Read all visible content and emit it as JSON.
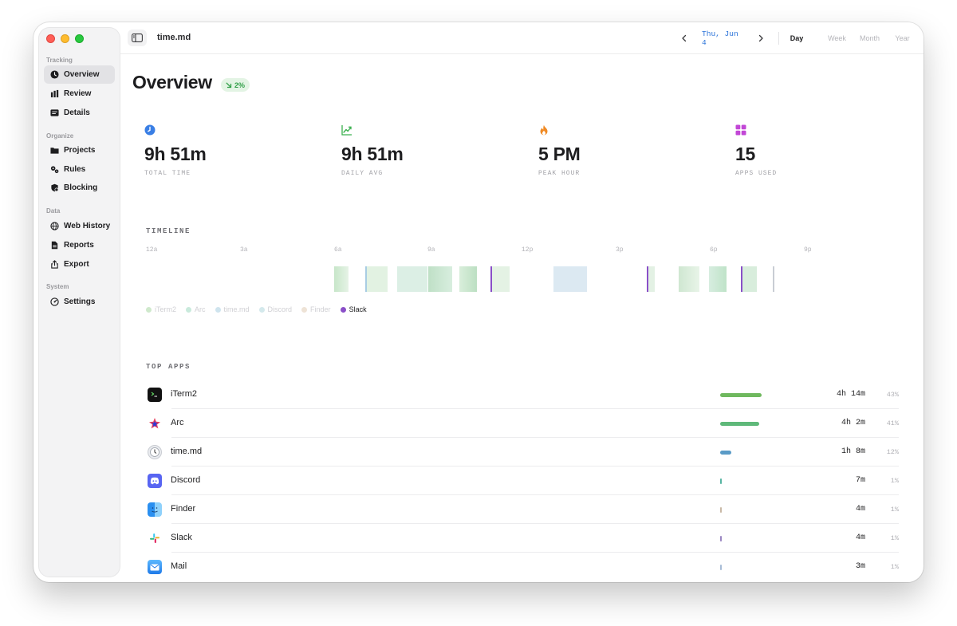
{
  "sidebar": {
    "sections": [
      {
        "label": "Tracking",
        "items": [
          {
            "label": "Overview",
            "icon": "clock-icon",
            "active": true
          },
          {
            "label": "Review",
            "icon": "bar-chart-icon"
          },
          {
            "label": "Details",
            "icon": "list-detail-icon"
          }
        ]
      },
      {
        "label": "Organize",
        "items": [
          {
            "label": "Projects",
            "icon": "folder-icon"
          },
          {
            "label": "Rules",
            "icon": "gears-icon"
          },
          {
            "label": "Blocking",
            "icon": "shield-icon"
          }
        ]
      },
      {
        "label": "Data",
        "items": [
          {
            "label": "Web History",
            "icon": "globe-icon"
          },
          {
            "label": "Reports",
            "icon": "document-icon"
          },
          {
            "label": "Export",
            "icon": "share-icon"
          }
        ]
      },
      {
        "label": "System",
        "items": [
          {
            "label": "Settings",
            "icon": "gauge-icon"
          }
        ]
      }
    ]
  },
  "header": {
    "title": "time.md",
    "date": "Thu, Jun 4",
    "ranges": [
      "Day",
      "Week",
      "Month",
      "Year"
    ],
    "active_range": "Day"
  },
  "overview": {
    "title": "Overview",
    "trend": "2%",
    "trend_direction": "down"
  },
  "stats": [
    {
      "value": "9h 51m",
      "label": "TOTAL TIME",
      "icon": "clock-icon",
      "color": "#3a7fe5"
    },
    {
      "value": "9h 51m",
      "label": "DAILY AVG",
      "icon": "trend-chart-icon",
      "color": "#3bb04f"
    },
    {
      "value": "5 PM",
      "label": "PEAK HOUR",
      "icon": "flame-icon",
      "color": "#f08a24"
    },
    {
      "value": "15",
      "label": "APPS USED",
      "icon": "apps-grid-icon",
      "color": "#c247d6"
    }
  ],
  "timeline": {
    "title": "TIMELINE",
    "ticks": [
      "12a",
      "3a",
      "6a",
      "9a",
      "12p",
      "3p",
      "6p",
      "9p"
    ],
    "legend": [
      {
        "label": "iTerm2",
        "color": "#cfe9cc",
        "highlight": false
      },
      {
        "label": "Arc",
        "color": "#c9eadc",
        "highlight": false
      },
      {
        "label": "time.md",
        "color": "#cfe4ee",
        "highlight": false
      },
      {
        "label": "Discord",
        "color": "#d4e9ec",
        "highlight": false
      },
      {
        "label": "Finder",
        "color": "#eee3d6",
        "highlight": false
      },
      {
        "label": "Slack",
        "color": "#8a4fc8",
        "highlight": true
      }
    ]
  },
  "top_apps": {
    "title": "TOP APPS",
    "apps": [
      {
        "name": "iTerm2",
        "time": "4h 14m",
        "pct": "43%",
        "share": 0.43,
        "color": "#6fb85e",
        "icon": "terminal-icon"
      },
      {
        "name": "Arc",
        "time": "4h 2m",
        "pct": "41%",
        "share": 0.41,
        "color": "#5fb97a",
        "icon": "arc-star-icon"
      },
      {
        "name": "time.md",
        "time": "1h 8m",
        "pct": "12%",
        "share": 0.12,
        "color": "#5a9bc7",
        "icon": "clock-app-icon"
      },
      {
        "name": "Discord",
        "time": "7m",
        "pct": "1%",
        "share": 0.01,
        "color": "#58b5a3",
        "icon": "discord-icon"
      },
      {
        "name": "Finder",
        "time": "4m",
        "pct": "1%",
        "share": 0.005,
        "color": "#c9b9a6",
        "icon": "finder-icon"
      },
      {
        "name": "Slack",
        "time": "4m",
        "pct": "1%",
        "share": 0.005,
        "color": "#9a87c2",
        "icon": "slack-icon"
      },
      {
        "name": "Mail",
        "time": "3m",
        "pct": "1%",
        "share": 0.005,
        "color": "#a7bcd6",
        "icon": "mail-icon"
      }
    ]
  }
}
